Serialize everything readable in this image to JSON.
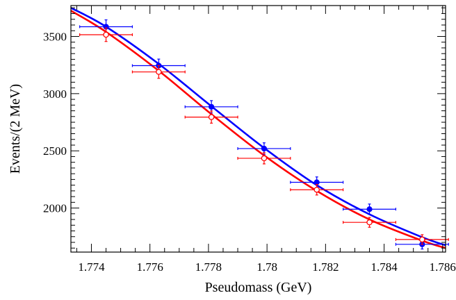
{
  "chart_data": {
    "type": "scatter",
    "title": "",
    "xlabel": "Pseudomass (GeV)",
    "ylabel": "Events/(2 MeV)",
    "xlim": [
      1.7733,
      1.7861
    ],
    "ylim": [
      1615,
      3770
    ],
    "x_ticks": [
      1.774,
      1.776,
      1.778,
      1.78,
      1.782,
      1.784,
      1.786
    ],
    "x_tick_labels": [
      "1.774",
      "1.776",
      "1.778",
      "1.78",
      "1.782",
      "1.784",
      "1.786"
    ],
    "y_ticks": [
      2000,
      2500,
      3000,
      3500
    ],
    "y_tick_labels": [
      "2000",
      "2500",
      "3000",
      "3500"
    ],
    "grid": false,
    "series": [
      {
        "color": "#0000ff",
        "marker": "filled-circle",
        "points": [
          {
            "x": 1.7745,
            "y": 3585,
            "xerr": 0.0009,
            "yerr": 60
          },
          {
            "x": 1.7763,
            "y": 3245,
            "xerr": 0.0009,
            "yerr": 57
          },
          {
            "x": 1.7781,
            "y": 2885,
            "xerr": 0.0009,
            "yerr": 54
          },
          {
            "x": 1.7799,
            "y": 2520,
            "xerr": 0.0009,
            "yerr": 50
          },
          {
            "x": 1.7817,
            "y": 2225,
            "xerr": 0.0009,
            "yerr": 47
          },
          {
            "x": 1.7835,
            "y": 1990,
            "xerr": 0.0009,
            "yerr": 45
          },
          {
            "x": 1.7853,
            "y": 1683,
            "xerr": 0.0009,
            "yerr": 41
          }
        ],
        "fit": [
          {
            "x": 1.7733,
            "y": 3750
          },
          {
            "x": 1.7745,
            "y": 3585
          },
          {
            "x": 1.7763,
            "y": 3260
          },
          {
            "x": 1.7781,
            "y": 2890
          },
          {
            "x": 1.7799,
            "y": 2525
          },
          {
            "x": 1.7817,
            "y": 2200
          },
          {
            "x": 1.7835,
            "y": 1945
          },
          {
            "x": 1.7853,
            "y": 1745
          },
          {
            "x": 1.7861,
            "y": 1675
          }
        ]
      },
      {
        "color": "#ff0000",
        "marker": "open-circle",
        "points": [
          {
            "x": 1.7745,
            "y": 3515,
            "xerr": 0.0009,
            "yerr": 59
          },
          {
            "x": 1.7763,
            "y": 3190,
            "xerr": 0.0009,
            "yerr": 56
          },
          {
            "x": 1.7781,
            "y": 2795,
            "xerr": 0.0009,
            "yerr": 53
          },
          {
            "x": 1.7799,
            "y": 2435,
            "xerr": 0.0009,
            "yerr": 49
          },
          {
            "x": 1.7817,
            "y": 2160,
            "xerr": 0.0009,
            "yerr": 46
          },
          {
            "x": 1.7835,
            "y": 1875,
            "xerr": 0.0009,
            "yerr": 43
          },
          {
            "x": 1.7853,
            "y": 1725,
            "xerr": 0.0009,
            "yerr": 42
          }
        ],
        "fit": [
          {
            "x": 1.7733,
            "y": 3725
          },
          {
            "x": 1.7745,
            "y": 3540
          },
          {
            "x": 1.7763,
            "y": 3200
          },
          {
            "x": 1.7781,
            "y": 2820
          },
          {
            "x": 1.7799,
            "y": 2460
          },
          {
            "x": 1.7817,
            "y": 2150
          },
          {
            "x": 1.7835,
            "y": 1900
          },
          {
            "x": 1.7853,
            "y": 1715
          },
          {
            "x": 1.7861,
            "y": 1650
          }
        ]
      }
    ]
  }
}
